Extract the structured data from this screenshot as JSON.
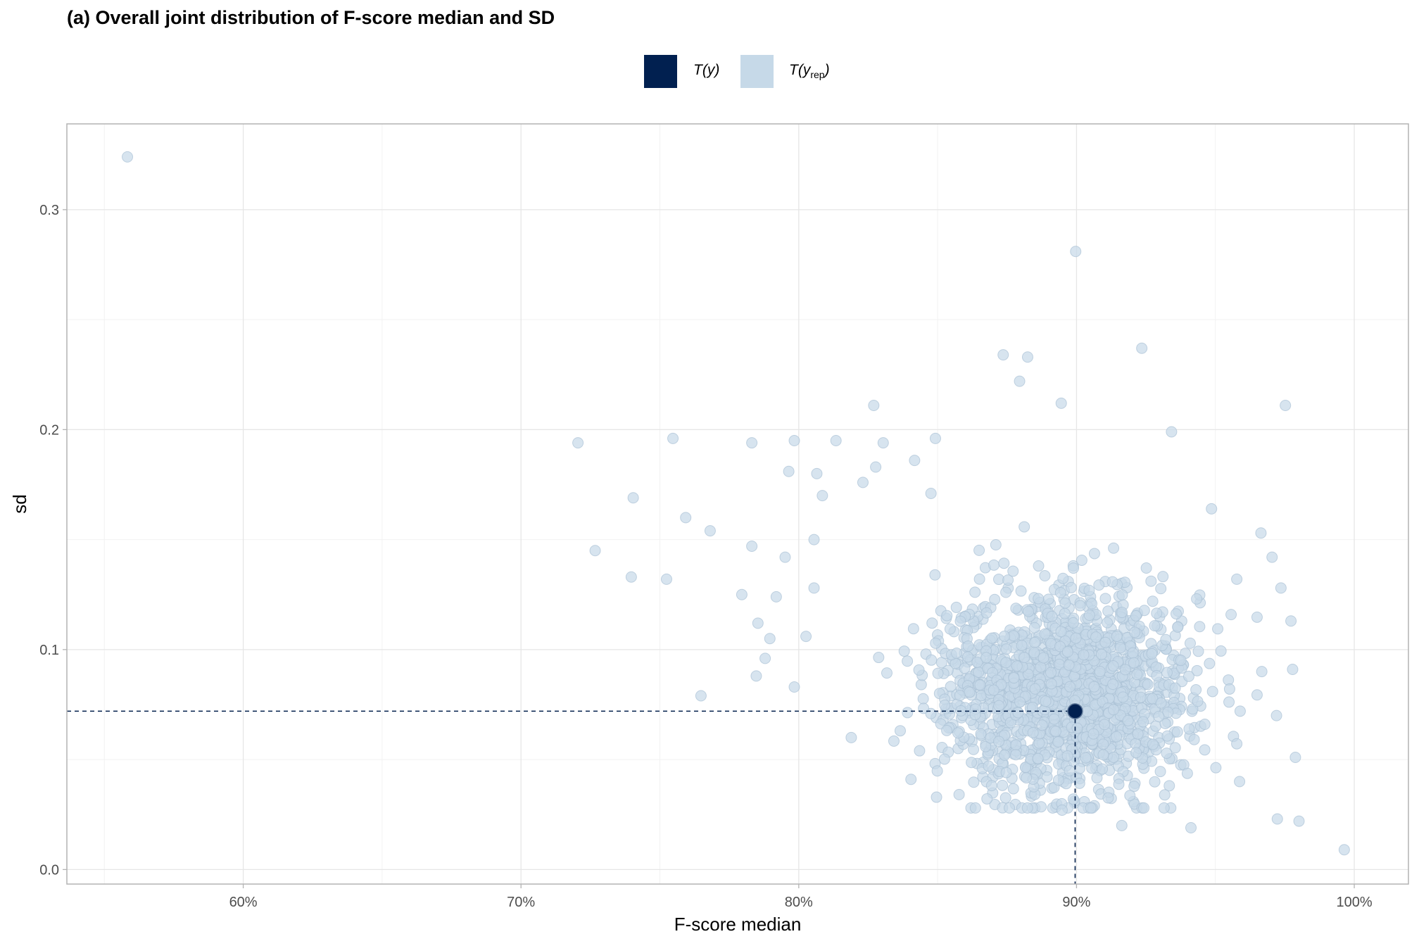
{
  "title": "(a) Overall joint distribution of F-score median and SD",
  "legend": {
    "observed": {
      "label_main": "T(y)",
      "color": "#012050"
    },
    "replicated": {
      "label_main": "T(y",
      "label_sub": "rep",
      "label_close": ")",
      "color": "#c6d9e8"
    }
  },
  "chart_data": {
    "type": "scatter",
    "title": "(a) Overall joint distribution of F-score median and SD",
    "xlabel": "F-score median",
    "ylabel": "sd",
    "xlim": [
      53.65,
      101.95
    ],
    "ylim": [
      -0.0066,
      0.339
    ],
    "x_ticks": [
      60,
      70,
      80,
      90,
      100
    ],
    "x_tick_labels": [
      "60%",
      "70%",
      "80%",
      "90%",
      "100%"
    ],
    "y_ticks": [
      0.0,
      0.1,
      0.2,
      0.3
    ],
    "y_tick_labels": [
      "0.0",
      "0.1",
      "0.2",
      "0.3"
    ],
    "grid": true,
    "legend_position": "top",
    "observed_point": {
      "x": 89.95,
      "y": 0.072
    },
    "replicated_cluster": {
      "n": 1700,
      "x_mean": 89.6,
      "x_sd": 2.2,
      "y_mean": 0.08,
      "y_sd": 0.022,
      "x_range": [
        81.5,
        96.5
      ],
      "y_range": [
        0.028,
        0.165
      ],
      "seed": 20160
    },
    "replicated_outliers": [
      [
        55.83,
        0.324
      ],
      [
        89.97,
        0.281
      ],
      [
        92.35,
        0.237
      ],
      [
        87.36,
        0.234
      ],
      [
        88.24,
        0.233
      ],
      [
        87.95,
        0.222
      ],
      [
        82.7,
        0.211
      ],
      [
        97.52,
        0.211
      ],
      [
        89.45,
        0.212
      ],
      [
        72.05,
        0.194
      ],
      [
        75.47,
        0.196
      ],
      [
        78.31,
        0.194
      ],
      [
        79.84,
        0.195
      ],
      [
        81.34,
        0.195
      ],
      [
        83.04,
        0.194
      ],
      [
        84.92,
        0.196
      ],
      [
        93.42,
        0.199
      ],
      [
        74.04,
        0.169
      ],
      [
        72.67,
        0.145
      ],
      [
        73.97,
        0.133
      ],
      [
        75.24,
        0.132
      ],
      [
        75.93,
        0.16
      ],
      [
        76.81,
        0.154
      ],
      [
        79.64,
        0.181
      ],
      [
        80.65,
        0.18
      ],
      [
        80.85,
        0.17
      ],
      [
        82.31,
        0.176
      ],
      [
        82.77,
        0.183
      ],
      [
        84.17,
        0.186
      ],
      [
        84.76,
        0.171
      ],
      [
        78.31,
        0.147
      ],
      [
        79.51,
        0.142
      ],
      [
        77.95,
        0.125
      ],
      [
        79.19,
        0.124
      ],
      [
        78.53,
        0.112
      ],
      [
        78.96,
        0.105
      ],
      [
        78.79,
        0.096
      ],
      [
        78.47,
        0.088
      ],
      [
        76.48,
        0.079
      ],
      [
        79.84,
        0.083
      ],
      [
        80.26,
        0.106
      ],
      [
        80.55,
        0.128
      ],
      [
        80.55,
        0.15
      ],
      [
        96.64,
        0.153
      ],
      [
        97.04,
        0.142
      ],
      [
        97.36,
        0.128
      ],
      [
        97.72,
        0.113
      ],
      [
        97.78,
        0.091
      ],
      [
        97.88,
        0.051
      ],
      [
        97.23,
        0.023
      ],
      [
        98.01,
        0.022
      ],
      [
        99.64,
        0.009
      ],
      [
        95.77,
        0.132
      ],
      [
        94.86,
        0.164
      ],
      [
        96.67,
        0.09
      ],
      [
        97.2,
        0.07
      ],
      [
        89.48,
        0.027
      ],
      [
        95.87,
        0.04
      ],
      [
        94.12,
        0.019
      ],
      [
        91.63,
        0.02
      ],
      [
        84.04,
        0.041
      ],
      [
        81.89,
        0.06
      ]
    ]
  }
}
